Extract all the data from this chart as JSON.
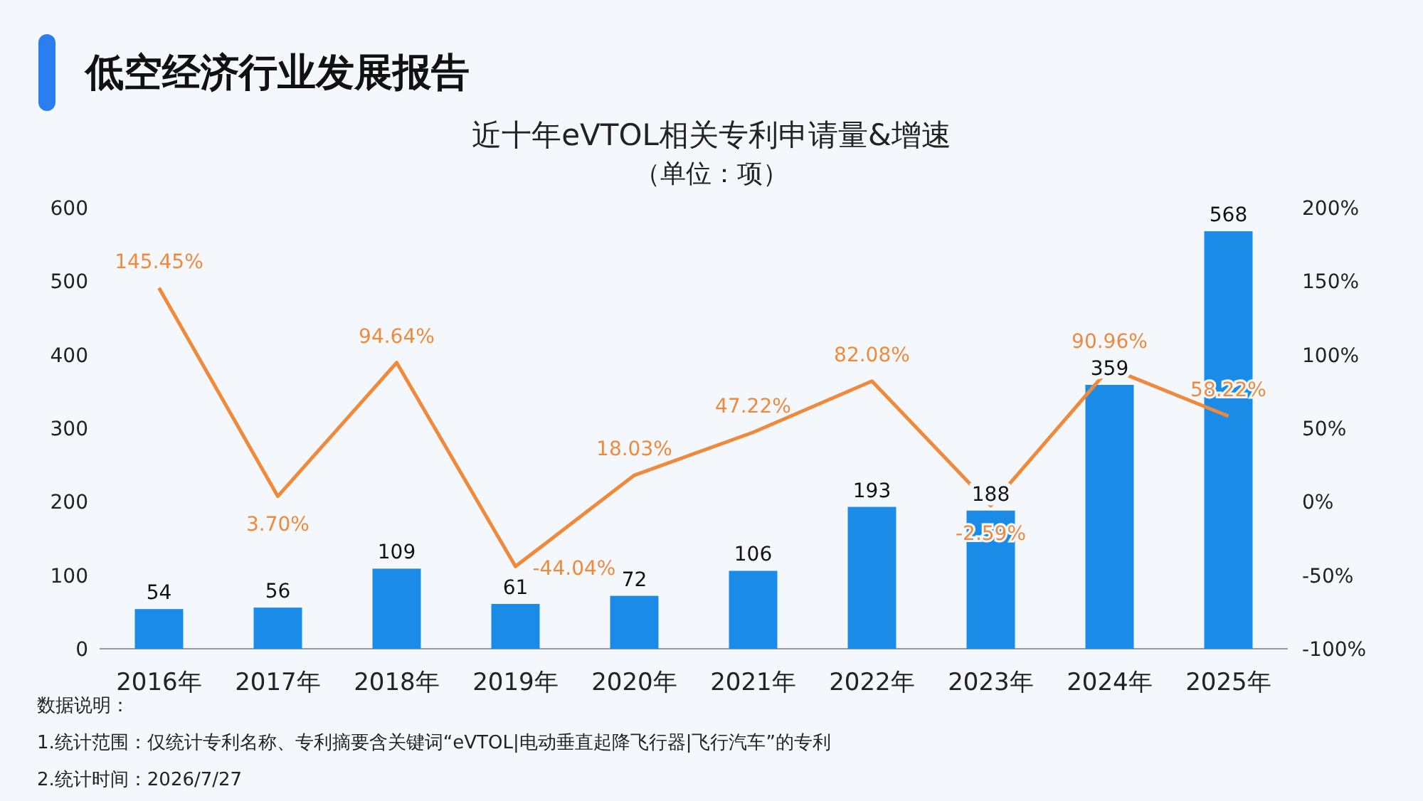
{
  "chart_data": {
    "type": "bar",
    "title": "低空经济行业发展报告",
    "subtitle": "近十年eVTOL相关专利申请量&增速",
    "categories": [
      "2016年",
      "2017年",
      "2018年",
      "2019年",
      "2020年",
      "2021年",
      "2022年",
      "2023年",
      "2024年",
      "2025年"
    ],
    "series": [
      {
        "color": "#1a8ce8",
        "values": [
          54,
          56,
          109,
          61,
          72,
          106,
          193,
          188,
          359,
          568
        ],
        "value_labels": [
          "54",
          "56",
          "109",
          "61",
          "72",
          "106",
          "193",
          "188",
          "359",
          "568"
        ]
      },
      {
        "type": "line",
        "axis": "y2",
        "color": "#ef8a3c",
        "values": [
          145.45,
          3.7,
          94.64,
          -44.04,
          18.03,
          47.22,
          82.08,
          -2.59,
          90.96,
          58.22
        ],
        "value_labels": [
          "145.45%",
          "3.70%",
          "94.64%",
          "-44.04%",
          "18.03%",
          "47.22%",
          "82.08%",
          "-2.59%",
          "90.96%",
          "58.22%"
        ]
      }
    ],
    "ylim": [
      0,
      600
    ],
    "yticks": [
      0,
      100,
      200,
      300,
      400,
      500,
      600
    ],
    "y2lim": [
      -100,
      200
    ],
    "y2ticks": [
      {
        "value": -100,
        "label": "-100%"
      },
      {
        "value": -50,
        "label": "-50%"
      },
      {
        "value": 0,
        "label": "0%"
      },
      {
        "value": 50,
        "label": "50%"
      },
      {
        "value": 100,
        "label": "100%"
      },
      {
        "value": 150,
        "label": "150%"
      },
      {
        "value": 200,
        "label": "200%"
      }
    ],
    "annotations": [
      "（单位：项）",
      "数据说明：",
      "1.统计范围：仅统计专利名称、专利摘要含关键词“eVTOL|电动垂直起降飞行器|飞行汽车”的专利",
      "2.统计时间：2026/7/27"
    ]
  }
}
